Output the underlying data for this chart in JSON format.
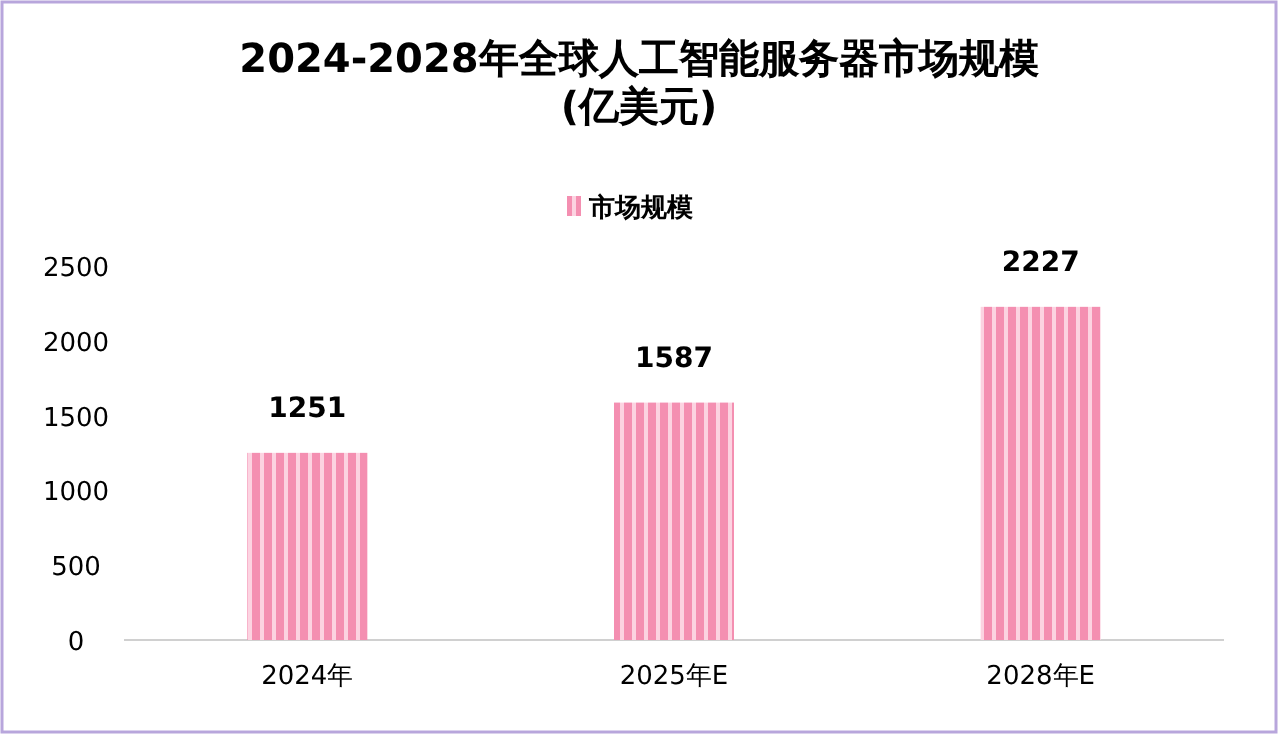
{
  "chart_data": {
    "type": "bar",
    "title": "2024-2028年全球人工智能服务器市场规模\n(亿美元)",
    "categories": [
      "2024年",
      "2025年E",
      "2028年E"
    ],
    "series": [
      {
        "name": "市场规模",
        "color": "#f48fb1",
        "values": [
          1251,
          1587,
          2227
        ]
      }
    ],
    "ylim": [
      0,
      2500
    ],
    "yticks": [
      0,
      500,
      1000,
      1500,
      2000,
      2500
    ],
    "data_labels": true,
    "legend": "top",
    "grid": false
  }
}
